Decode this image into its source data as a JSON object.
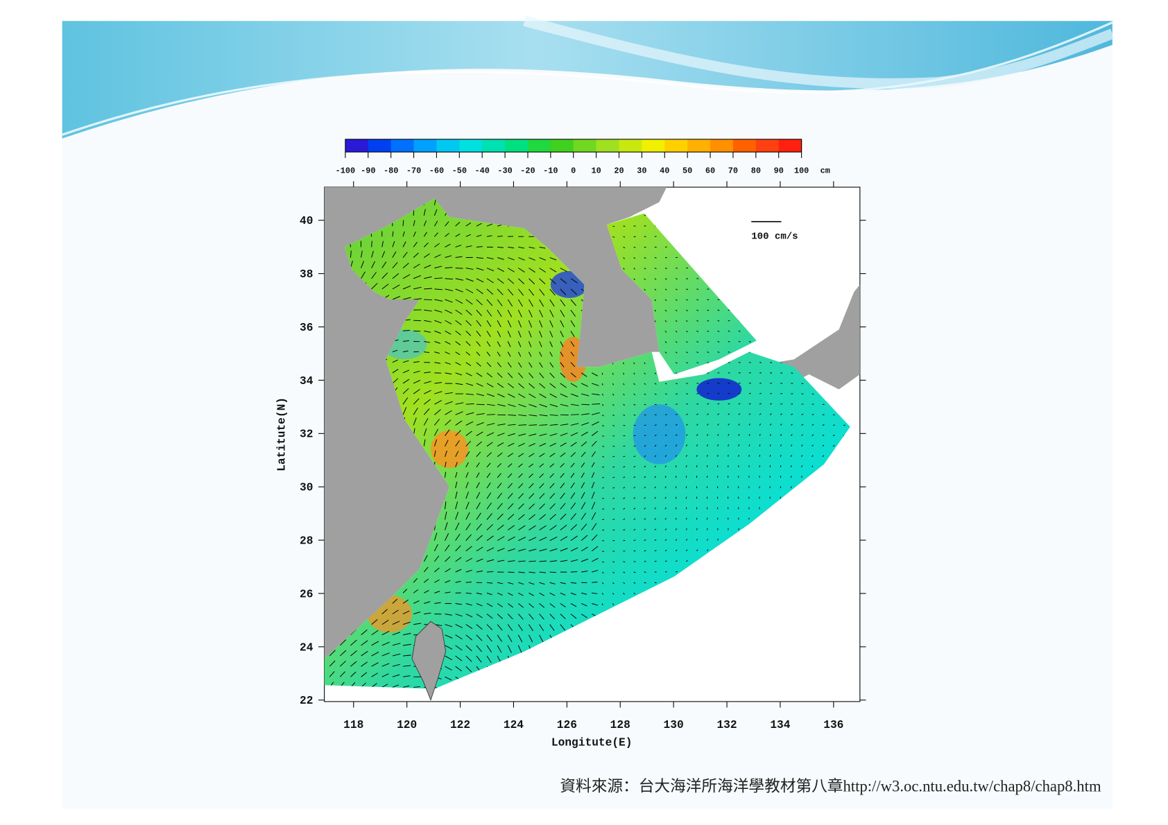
{
  "colorbar": {
    "ticks": [
      -100,
      -90,
      -80,
      -70,
      -60,
      -50,
      -40,
      -30,
      -20,
      -10,
      0,
      10,
      20,
      30,
      40,
      50,
      60,
      70,
      80,
      90,
      100
    ],
    "unit": "cm"
  },
  "map": {
    "xticks": [
      118,
      120,
      122,
      124,
      126,
      128,
      130,
      132,
      134,
      136
    ],
    "yticks": [
      22,
      24,
      26,
      28,
      30,
      32,
      34,
      36,
      38,
      40
    ],
    "xlabel": "Longitute(E)",
    "ylabel": "Latitute(N)",
    "scale_label": "100 cm/s"
  },
  "source": "資料來源：台大海洋所海洋學教材第八章http://w3.oc.ntu.edu.tw/chap8/chap8.htm"
}
